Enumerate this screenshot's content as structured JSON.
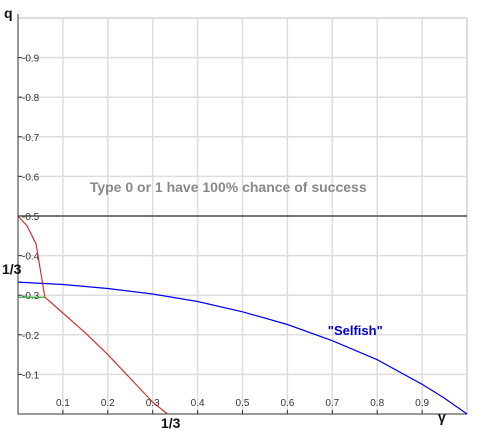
{
  "chart_data": {
    "type": "line",
    "xlabel": "γ",
    "ylabel": "q",
    "xlim": [
      0,
      1
    ],
    "ylim": [
      0,
      1
    ],
    "x_ticks": [
      {
        "value": 0.1,
        "label": "0.1"
      },
      {
        "value": 0.2,
        "label": "0.2"
      },
      {
        "value": 0.3,
        "label": "0.3"
      },
      {
        "value": 0.4,
        "label": "0.4"
      },
      {
        "value": 0.5,
        "label": "0.5"
      },
      {
        "value": 0.6,
        "label": "0.6"
      },
      {
        "value": 0.7,
        "label": "0.7"
      },
      {
        "value": 0.8,
        "label": "0.8"
      },
      {
        "value": 0.9,
        "label": "0.9"
      }
    ],
    "y_ticks": [
      {
        "value": 0.1,
        "label": "0.1"
      },
      {
        "value": 0.2,
        "label": "0.2"
      },
      {
        "value": 0.3,
        "label": "0.3"
      },
      {
        "value": 0.4,
        "label": "0.4"
      },
      {
        "value": 0.5,
        "label": "0.5"
      },
      {
        "value": 0.6,
        "label": "0.6"
      },
      {
        "value": 0.7,
        "label": "0.7"
      },
      {
        "value": 0.8,
        "label": "0.8"
      },
      {
        "value": 0.9,
        "label": "0.9"
      }
    ],
    "grid": true,
    "special_ticks": {
      "x": {
        "value": 0.3333,
        "label": "1/3"
      },
      "y": {
        "value": 0.3333,
        "label": "1/3"
      }
    },
    "series": [
      {
        "color": "#0000ee",
        "x": [
          0,
          0.1,
          0.2,
          0.3,
          0.4,
          0.5,
          0.6,
          0.7,
          0.8,
          0.9,
          0.95,
          1.0
        ],
        "y": [
          0.333,
          0.327,
          0.317,
          0.303,
          0.284,
          0.258,
          0.226,
          0.185,
          0.137,
          0.075,
          0.04,
          0.0
        ]
      },
      {
        "color": "#cc3333",
        "x": [
          0,
          0.02,
          0.04,
          0.06,
          0.1,
          0.15,
          0.2,
          0.25,
          0.3,
          0.333
        ],
        "y": [
          0.5,
          0.475,
          0.43,
          0.295,
          0.255,
          0.205,
          0.15,
          0.09,
          0.03,
          0.0
        ]
      },
      {
        "color": "#22aa22",
        "x": [
          0,
          0.06
        ],
        "y": [
          0.295,
          0.295
        ]
      },
      {
        "color": "#333333",
        "x": [
          0,
          1
        ],
        "y": [
          0.5,
          0.5
        ]
      }
    ],
    "annotations": [
      {
        "text": "Type 0 or 1 have 100% chance of success",
        "x": 0.16,
        "y": 0.56,
        "color": "#888888"
      },
      {
        "text": "\"Selfish\"",
        "x": 0.69,
        "y": 0.2,
        "color": "#0000cc"
      }
    ]
  }
}
